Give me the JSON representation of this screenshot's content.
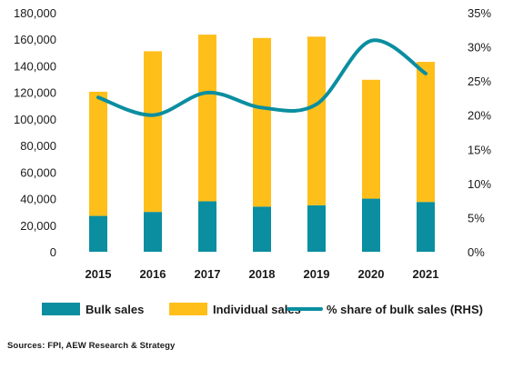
{
  "chart_data": {
    "type": "bar",
    "stacked": true,
    "categories": [
      "2015",
      "2016",
      "2017",
      "2018",
      "2019",
      "2020",
      "2021"
    ],
    "series": [
      {
        "name": "Bulk sales",
        "type": "bar",
        "color": "#0a8ea0",
        "values": [
          27000,
          30000,
          38000,
          34000,
          35000,
          40000,
          37500
        ]
      },
      {
        "name": "Individual sales",
        "type": "bar",
        "color": "#ffbf1a",
        "values": [
          93500,
          121000,
          125500,
          127000,
          127000,
          89500,
          105500
        ]
      },
      {
        "name": "% share of bulk sales (RHS)",
        "type": "line",
        "axis": "right",
        "color": "#0a8ea0",
        "values": [
          22.6,
          20.0,
          23.3,
          21.1,
          21.6,
          30.9,
          26.1
        ]
      }
    ],
    "ylim": [
      0,
      180000
    ],
    "yticks": [
      "0",
      "20,000",
      "40,000",
      "60,000",
      "80,000",
      "100,000",
      "120,000",
      "140,000",
      "160,000",
      "180,000"
    ],
    "y2lim": [
      0,
      35
    ],
    "y2ticks": [
      "0%",
      "5%",
      "10%",
      "15%",
      "20%",
      "25%",
      "30%",
      "35%"
    ],
    "legend": {
      "position": "bottom",
      "items": [
        {
          "label": "Bulk sales",
          "marker": "box",
          "color": "#0a8ea0"
        },
        {
          "label": "Individual sales",
          "marker": "box",
          "color": "#ffbf1a"
        },
        {
          "label": "% share of bulk sales (RHS)",
          "marker": "line",
          "color": "#0a8ea0"
        }
      ]
    },
    "grid": false,
    "source": "Sources: FPI, AEW Research & Strategy"
  }
}
